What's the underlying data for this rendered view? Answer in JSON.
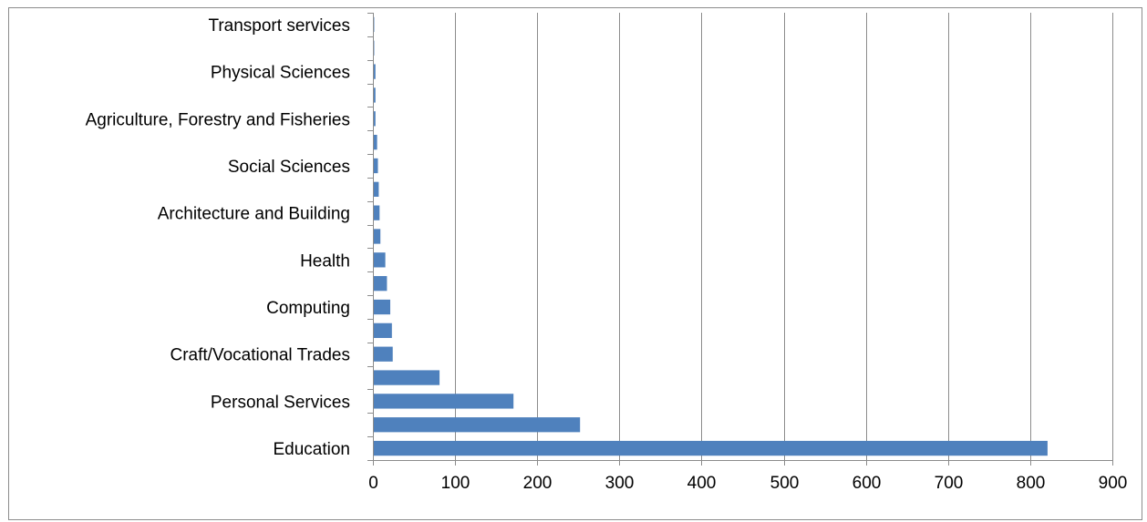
{
  "chart_data": {
    "type": "bar",
    "orientation": "horizontal",
    "title": "",
    "xlabel": "",
    "ylabel": "",
    "categories": [
      "Education",
      "",
      "Personal Services",
      "",
      "Craft/Vocational Trades",
      "",
      "Computing",
      "",
      "Health",
      "",
      "Architecture and Building",
      "",
      "Social Sciences",
      "",
      "Agriculture, Forestry and Fisheries",
      "",
      "Physical Sciences",
      "",
      "Transport services"
    ],
    "values": [
      820,
      251,
      170,
      80,
      23,
      22,
      20,
      16,
      14,
      8,
      7,
      6,
      5,
      4,
      2,
      2,
      2,
      0.5,
      0.5
    ],
    "xlim": [
      0,
      900
    ],
    "xticks": [
      "0",
      "100",
      "200",
      "300",
      "400",
      "500",
      "600",
      "700",
      "800",
      "900"
    ],
    "grid": "vertical",
    "legend": "none",
    "bar_color": "#4f81bd",
    "gridline_color": "#8c8c8c"
  }
}
